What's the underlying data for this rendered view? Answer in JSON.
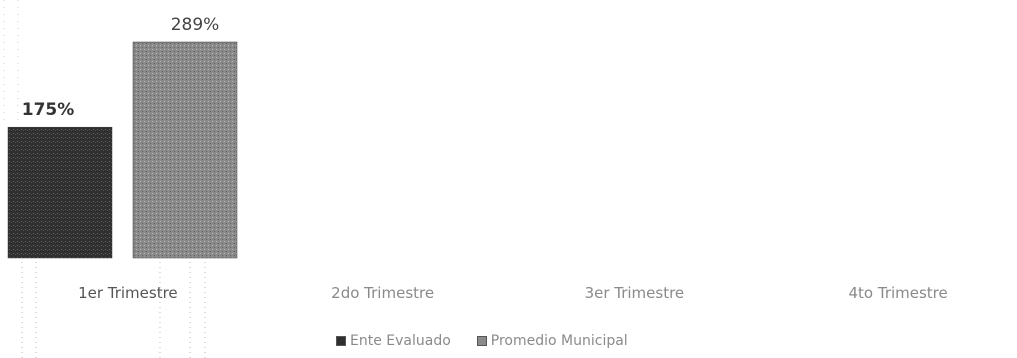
{
  "chart_data": {
    "type": "bar",
    "categories": [
      "1er Trimestre",
      "2do Trimestre",
      "3er Trimestre",
      "4to Trimestre"
    ],
    "series": [
      {
        "name": "Ente Evaluado",
        "values": [
          175,
          null,
          null,
          null
        ],
        "labels": [
          "175%",
          "",
          "",
          ""
        ],
        "color": "#2f2f2f"
      },
      {
        "name": "Promedio Municipal",
        "values": [
          289,
          null,
          null,
          null
        ],
        "labels": [
          "289%",
          "",
          "",
          ""
        ],
        "color": "#8a8a8a"
      }
    ],
    "value_suffix": "%",
    "ylim": [
      0,
      300
    ],
    "grid": false,
    "legend_position": "bottom-center"
  }
}
